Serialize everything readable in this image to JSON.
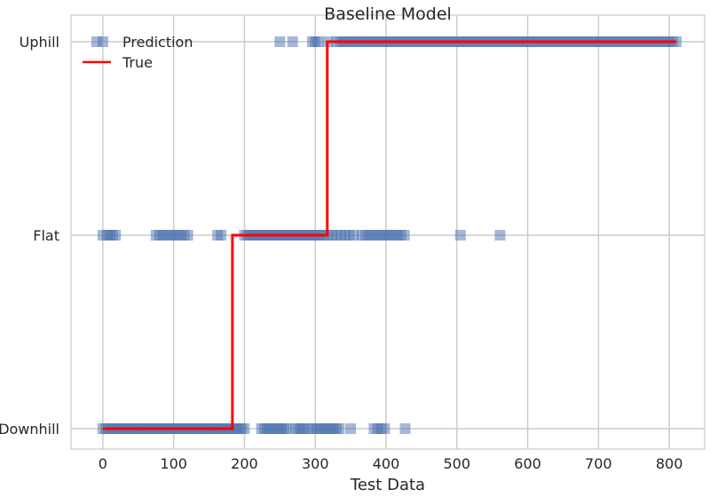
{
  "chart_data": {
    "type": "scatter",
    "title": "Baseline Model",
    "xlabel": "Test Data",
    "ylabel": "",
    "xlim": [
      -45,
      850
    ],
    "x_ticks": [
      0,
      100,
      200,
      300,
      400,
      500,
      600,
      700,
      800
    ],
    "y_categories": [
      "Downhill",
      "Flat",
      "Uphill"
    ],
    "grid": true,
    "legend": {
      "position": "top-left",
      "entries": [
        "Prediction",
        "True"
      ]
    },
    "colors": {
      "prediction": "#4c72b0",
      "true": "#ff0000",
      "grid": "#cccccc",
      "axes": "#cccccc"
    },
    "series": [
      {
        "name": "Prediction",
        "kind": "scatter",
        "marker": "square",
        "alpha": 0.5,
        "points": {
          "Downhill": [
            0,
            4,
            8,
            12,
            16,
            20,
            24,
            28,
            32,
            36,
            40,
            44,
            48,
            52,
            56,
            60,
            64,
            68,
            72,
            76,
            80,
            84,
            88,
            92,
            96,
            100,
            104,
            108,
            112,
            116,
            120,
            124,
            128,
            132,
            136,
            140,
            144,
            148,
            152,
            156,
            160,
            164,
            168,
            172,
            176,
            180,
            184,
            188,
            192,
            196,
            200,
            224,
            228,
            232,
            236,
            240,
            244,
            248,
            252,
            256,
            260,
            272,
            276,
            280,
            284,
            290,
            296,
            302,
            306,
            310,
            314,
            318,
            322,
            326,
            330,
            334,
            350,
            383,
            388,
            393,
            398,
            427
          ],
          "Flat": [
            0,
            6,
            10,
            14,
            18,
            75,
            80,
            85,
            90,
            95,
            100,
            105,
            110,
            115,
            120,
            162,
            167,
            200,
            204,
            208,
            212,
            216,
            220,
            224,
            228,
            232,
            236,
            240,
            244,
            248,
            252,
            256,
            260,
            264,
            268,
            272,
            276,
            280,
            284,
            288,
            292,
            296,
            300,
            304,
            308,
            312,
            318,
            324,
            330,
            336,
            342,
            348,
            354,
            366,
            371,
            376,
            381,
            386,
            391,
            396,
            401,
            406,
            411,
            416,
            421,
            426,
            505,
            561
          ],
          "Uphill": [
            0,
            250,
            268,
            296,
            300,
            304,
            318,
            330,
            335,
            340,
            345,
            350,
            355,
            360,
            365,
            370,
            375,
            380,
            385,
            390,
            395,
            400,
            405,
            410,
            415,
            420,
            425,
            430,
            435,
            440,
            445,
            450,
            455,
            460,
            465,
            470,
            475,
            480,
            485,
            490,
            495,
            500,
            505,
            510,
            515,
            520,
            525,
            530,
            535,
            540,
            545,
            550,
            555,
            560,
            565,
            570,
            575,
            580,
            585,
            590,
            595,
            600,
            605,
            610,
            615,
            620,
            625,
            630,
            635,
            640,
            645,
            650,
            655,
            660,
            665,
            670,
            675,
            680,
            685,
            690,
            695,
            700,
            705,
            710,
            715,
            720,
            725,
            730,
            735,
            740,
            745,
            750,
            755,
            760,
            765,
            770,
            775,
            780,
            785,
            790,
            795,
            800,
            805,
            810
          ]
        }
      },
      {
        "name": "True",
        "kind": "step",
        "segments": [
          {
            "x_start": 0,
            "x_end": 183,
            "y": "Downhill"
          },
          {
            "x_start": 183,
            "x_end": 317,
            "y": "Flat"
          },
          {
            "x_start": 317,
            "x_end": 810,
            "y": "Uphill"
          }
        ]
      }
    ]
  }
}
